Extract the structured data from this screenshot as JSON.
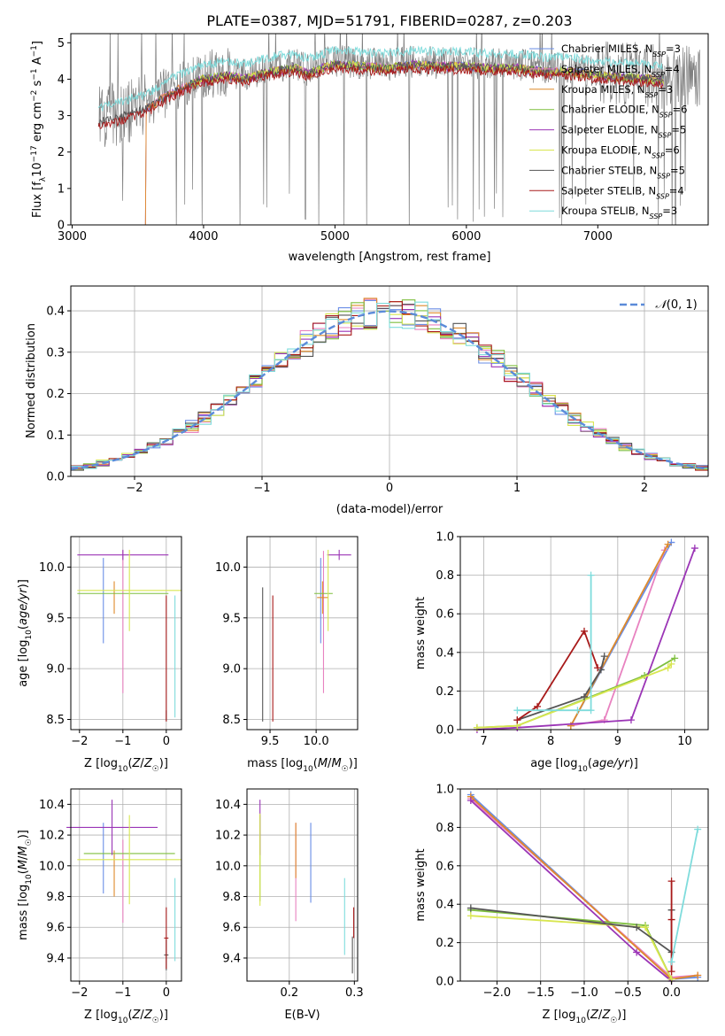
{
  "figure_title": "PLATE=0387, MJD=51791, FIBERID=0287, z=0.203",
  "colors": {
    "Chabrier MILES": "#6a8ee6",
    "Salpeter MILES": "#e882c0",
    "Kroupa MILES": "#df8a2a",
    "Chabrier ELODIE": "#7fbf3f",
    "Salpeter ELODIE": "#9b35b6",
    "Kroupa ELODIE": "#d8e650",
    "Chabrier STELIB": "#555555",
    "Salpeter STELIB": "#a81a1a",
    "Kroupa STELIB": "#7fdcdc",
    "data": "#808080",
    "normal": "#5b8bd9"
  },
  "chart_data": [
    {
      "id": "spectrum",
      "type": "line",
      "title": "PLATE=0387, MJD=51791, FIBERID=0287, z=0.203",
      "xlabel": "wavelength [Angstrom, rest frame]",
      "ylabel": "Flux [f_λ 10^-17 erg cm^-2 s^-1 A^-1]",
      "xlim": [
        2990,
        7840
      ],
      "ylim": [
        0,
        5.25
      ],
      "xticks": [
        "3000",
        "4000",
        "5000",
        "6000",
        "7000"
      ],
      "yticks": [
        "0",
        "1",
        "2",
        "3",
        "4",
        "5"
      ],
      "grid": false,
      "legend_position": "right",
      "legend": [
        {
          "model": "Chabrier MILES",
          "label": "Chabrier MILES, N",
          "nssp": "=3"
        },
        {
          "model": "Salpeter MILES",
          "label": "Salpeter MILES, N",
          "nssp": "=4"
        },
        {
          "model": "Kroupa MILES",
          "label": "Kroupa MILES, N",
          "nssp": "=3"
        },
        {
          "model": "Chabrier ELODIE",
          "label": "Chabrier ELODIE, N",
          "nssp": "=6"
        },
        {
          "model": "Salpeter ELODIE",
          "label": "Salpeter ELODIE, N",
          "nssp": "=5"
        },
        {
          "model": "Kroupa ELODIE",
          "label": "Kroupa ELODIE, N",
          "nssp": "=6"
        },
        {
          "model": "Chabrier STELIB",
          "label": "Chabrier STELIB, N",
          "nssp": "=5"
        },
        {
          "model": "Salpeter STELIB",
          "label": "Salpeter STELIB, N",
          "nssp": "=4"
        },
        {
          "model": "Kroupa STELIB",
          "label": "Kroupa STELIB, N",
          "nssp": "=3"
        }
      ],
      "continuum": {
        "x": [
          3200,
          3400,
          3600,
          3700,
          3800,
          3900,
          4000,
          4100,
          4200,
          4300,
          4500,
          4700,
          4800,
          4900,
          5000,
          5200,
          5400,
          5600,
          5800,
          6000,
          6200,
          6400,
          6600,
          6800,
          7000,
          7200,
          7400,
          7500
        ],
        "y": [
          2.75,
          2.95,
          3.2,
          3.45,
          3.65,
          3.8,
          3.95,
          4.0,
          4.05,
          3.95,
          4.15,
          4.25,
          4.1,
          4.25,
          4.35,
          4.3,
          4.25,
          4.35,
          4.3,
          4.3,
          4.25,
          4.25,
          4.15,
          4.15,
          4.05,
          4.0,
          3.95,
          3.9
        ]
      }
    },
    {
      "id": "residuals",
      "type": "histogram",
      "xlabel": "(data-model)/error",
      "ylabel": "Normed distribution",
      "xlim": [
        -2.5,
        2.5
      ],
      "ylim": [
        0,
        0.46
      ],
      "xticks": [
        "−2",
        "−1",
        "0",
        "1",
        "2"
      ],
      "yticks": [
        "0.0",
        "0.1",
        "0.2",
        "0.3",
        "0.4"
      ],
      "grid": true,
      "bin_width": 0.1,
      "legend_position": "top-right",
      "normal_label": "N(0,1)",
      "normal_curve": {
        "mean": 0,
        "sigma": 1
      }
    },
    {
      "id": "age-vs-Z",
      "type": "scatter",
      "xlabel": "Z [log10(Z/Z☉)]",
      "ylabel": "age [log10(age/yr)]",
      "xlim": [
        -2.2,
        0.35
      ],
      "ylim": [
        8.4,
        10.3
      ],
      "xticks": [
        "−2",
        "−1",
        "0"
      ],
      "yticks": [
        "8.5",
        "9.0",
        "9.5",
        "10.0"
      ],
      "grid": true
    },
    {
      "id": "age-vs-mass",
      "type": "scatter",
      "xlabel": "mass [log10(M/M☉)]",
      "ylabel": "",
      "xlim": [
        9.25,
        10.45
      ],
      "ylim": [
        8.4,
        10.3
      ],
      "xticks": [
        "9.5",
        "10.0"
      ],
      "yticks": [
        "8.5",
        "9.0",
        "9.5",
        "10.0"
      ],
      "grid": true
    },
    {
      "id": "massweight-vs-age",
      "type": "line",
      "xlabel": "age [log10(age/yr)]",
      "ylabel": "mass weight",
      "xlim": [
        6.65,
        10.35
      ],
      "ylim": [
        0,
        1.0
      ],
      "xticks": [
        "7",
        "8",
        "9",
        "10"
      ],
      "yticks": [
        "0.0",
        "0.2",
        "0.4",
        "0.6",
        "0.8",
        "1.0"
      ],
      "grid": true,
      "series": [
        {
          "name": "Chabrier MILES",
          "x": [
            8.3,
            9.8
          ],
          "y": [
            0.02,
            0.97
          ]
        },
        {
          "name": "Salpeter MILES",
          "x": [
            8.3,
            8.8,
            9.7
          ],
          "y": [
            0.02,
            0.05,
            0.93
          ]
        },
        {
          "name": "Kroupa MILES",
          "x": [
            8.3,
            9.75
          ],
          "y": [
            0.02,
            0.96
          ]
        },
        {
          "name": "Chabrier ELODIE",
          "x": [
            6.9,
            7.5,
            9.4,
            9.85
          ],
          "y": [
            0.01,
            0.02,
            0.28,
            0.37
          ]
        },
        {
          "name": "Salpeter ELODIE",
          "x": [
            6.9,
            7.5,
            9.2,
            10.15
          ],
          "y": [
            0.0,
            0.01,
            0.05,
            0.94
          ]
        },
        {
          "name": "Kroupa ELODIE",
          "x": [
            6.9,
            7.5,
            9.75,
            9.8
          ],
          "y": [
            0.01,
            0.02,
            0.32,
            0.34
          ]
        },
        {
          "name": "Chabrier STELIB",
          "x": [
            7.5,
            8.5,
            8.75,
            8.8
          ],
          "y": [
            0.05,
            0.17,
            0.31,
            0.38
          ]
        },
        {
          "name": "Salpeter STELIB",
          "x": [
            7.5,
            7.8,
            8.5,
            8.7
          ],
          "y": [
            0.05,
            0.12,
            0.51,
            0.32
          ]
        },
        {
          "name": "Kroupa STELIB",
          "x": [
            7.5,
            8.4,
            8.6,
            8.6
          ],
          "y": [
            0.1,
            0.1,
            0.1,
            0.8
          ]
        }
      ]
    },
    {
      "id": "mass-vs-Z",
      "type": "scatter",
      "xlabel": "Z [log10(Z/Z☉)]",
      "ylabel": "mass [log10(M/M☉)]",
      "xlim": [
        -2.2,
        0.35
      ],
      "ylim": [
        9.25,
        10.5
      ],
      "xticks": [
        "−2",
        "−1",
        "0"
      ],
      "yticks": [
        "9.4",
        "9.6",
        "9.8",
        "10.0",
        "10.2",
        "10.4"
      ],
      "grid": true
    },
    {
      "id": "mass-vs-EBV",
      "type": "scatter",
      "xlabel": "E(B-V)",
      "ylabel": "",
      "xlim": [
        0.135,
        0.305
      ],
      "ylim": [
        9.25,
        10.5
      ],
      "xticks": [
        "0.2",
        "0.3"
      ],
      "yticks": [
        "9.4",
        "9.6",
        "9.8",
        "10.0",
        "10.2",
        "10.4"
      ],
      "grid": true
    },
    {
      "id": "massweight-vs-Z",
      "type": "line",
      "xlabel": "Z [log10(Z/Z☉)]",
      "ylabel": "mass weight",
      "xlim": [
        -2.42,
        0.42
      ],
      "ylim": [
        0,
        1.0
      ],
      "xticks": [
        "−2.0",
        "−1.5",
        "−1.0",
        "−0.5",
        "0.0"
      ],
      "yticks": [
        "0.0",
        "0.2",
        "0.4",
        "0.6",
        "0.8",
        "1.0"
      ],
      "grid": true,
      "series": [
        {
          "name": "Chabrier MILES",
          "x": [
            -2.3,
            0.0,
            0.3
          ],
          "y": [
            0.97,
            0.01,
            0.02
          ]
        },
        {
          "name": "Salpeter MILES",
          "x": [
            -2.3,
            0.0,
            0.3
          ],
          "y": [
            0.95,
            0.02,
            0.03
          ]
        },
        {
          "name": "Kroupa MILES",
          "x": [
            -2.3,
            0.0,
            0.3
          ],
          "y": [
            0.96,
            0.01,
            0.03
          ]
        },
        {
          "name": "Chabrier ELODIE",
          "x": [
            -2.3,
            -0.3,
            0.0
          ],
          "y": [
            0.37,
            0.29,
            0.01
          ]
        },
        {
          "name": "Salpeter ELODIE",
          "x": [
            -2.3,
            -0.4,
            0.0
          ],
          "y": [
            0.94,
            0.15,
            0.0
          ]
        },
        {
          "name": "Kroupa ELODIE",
          "x": [
            -2.3,
            -0.3,
            0.0
          ],
          "y": [
            0.34,
            0.28,
            0.01
          ]
        },
        {
          "name": "Chabrier STELIB",
          "x": [
            -2.3,
            -0.4,
            0.0,
            0.0
          ],
          "y": [
            0.38,
            0.28,
            0.15,
            0.37
          ]
        },
        {
          "name": "Salpeter STELIB",
          "x": [
            0.0,
            0.0,
            0.0
          ],
          "y": [
            0.05,
            0.32,
            0.52
          ]
        },
        {
          "name": "Kroupa STELIB",
          "x": [
            0.0,
            0.3
          ],
          "y": [
            0.1,
            0.79
          ]
        }
      ]
    }
  ]
}
